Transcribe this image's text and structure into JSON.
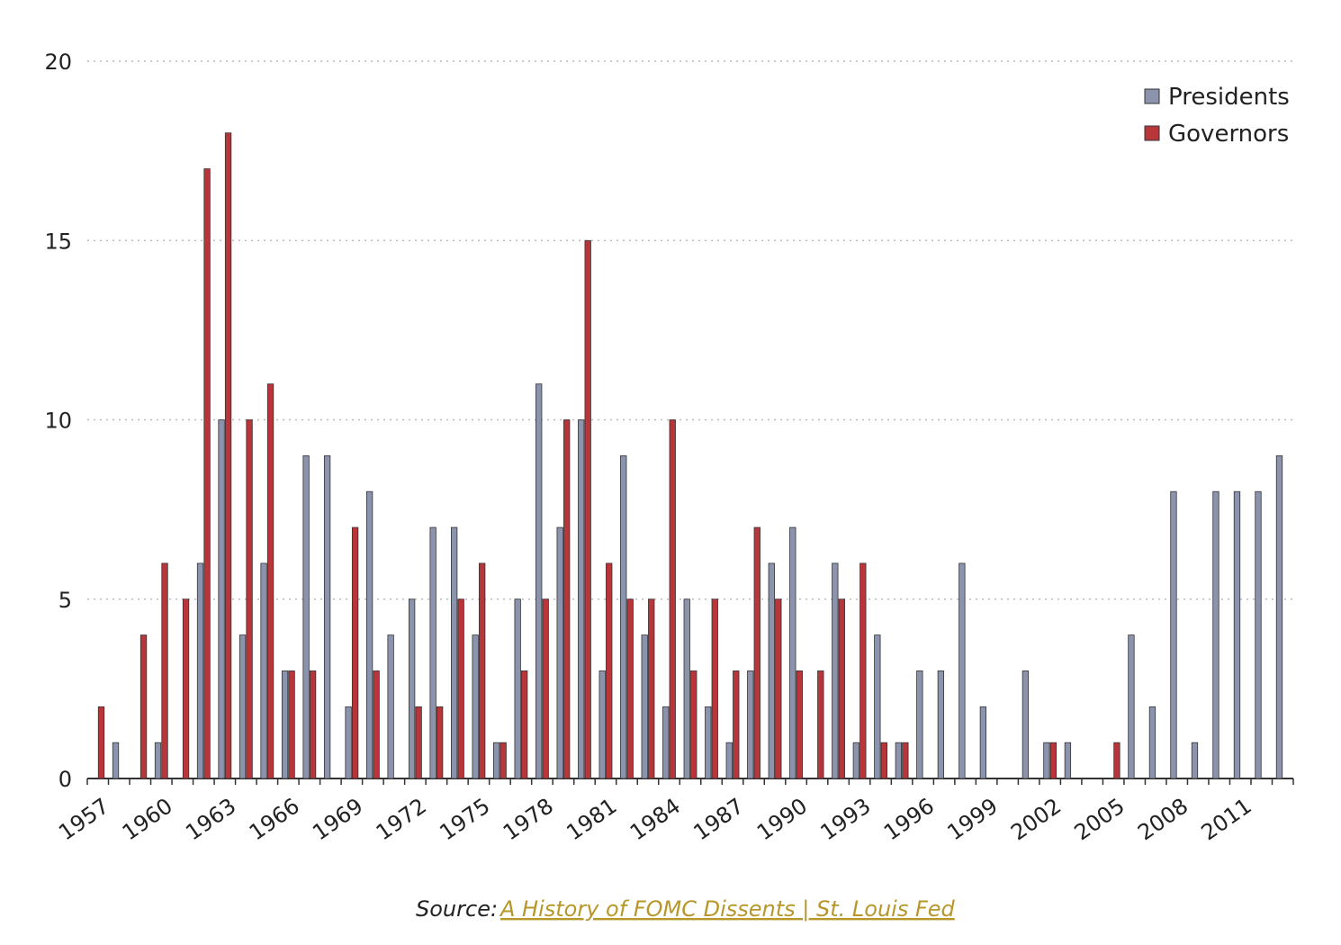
{
  "chart_data": {
    "type": "bar",
    "categories": [
      "1957",
      null,
      null,
      "1960",
      null,
      null,
      "1963",
      null,
      null,
      "1966",
      null,
      null,
      "1969",
      null,
      null,
      "1972",
      null,
      null,
      "1975",
      null,
      null,
      "1978",
      null,
      null,
      "1981",
      null,
      null,
      "1984",
      null,
      null,
      "1987",
      null,
      null,
      "1990",
      null,
      null,
      "1993",
      null,
      null,
      "1996",
      null,
      null,
      "1999",
      null,
      null,
      "2002",
      null,
      null,
      "2005",
      null,
      null,
      "2008",
      null,
      null,
      "2011",
      null,
      null
    ],
    "series": [
      {
        "name": "Presidents",
        "color": "#8c93ac",
        "values": [
          0,
          1,
          0,
          1,
          0,
          6,
          10,
          4,
          6,
          3,
          9,
          9,
          2,
          8,
          4,
          5,
          7,
          7,
          4,
          1,
          5,
          11,
          7,
          10,
          3,
          9,
          4,
          2,
          5,
          2,
          1,
          3,
          6,
          7,
          0,
          6,
          1,
          4,
          1,
          3,
          3,
          6,
          2,
          0,
          3,
          1,
          1,
          0,
          0,
          4,
          2,
          8,
          1,
          8,
          8,
          8,
          9
        ]
      },
      {
        "name": "Governors",
        "color": "#b8353a",
        "values": [
          2,
          0,
          4,
          6,
          5,
          17,
          18,
          10,
          11,
          3,
          3,
          0,
          7,
          3,
          0,
          2,
          2,
          5,
          6,
          1,
          3,
          5,
          10,
          15,
          6,
          5,
          5,
          10,
          3,
          5,
          3,
          7,
          5,
          3,
          3,
          5,
          6,
          1,
          1,
          0,
          0,
          0,
          0,
          0,
          0,
          1,
          0,
          0,
          1,
          0,
          0,
          0,
          0,
          0,
          0,
          0,
          0
        ]
      }
    ],
    "ylim": [
      0,
      20
    ],
    "yticks": [
      0,
      5,
      10,
      15,
      20
    ],
    "grid": true,
    "legend": "upper right",
    "source_label": "Source:",
    "source_link": "A History of FOMC Dissents | St. Louis Fed"
  }
}
